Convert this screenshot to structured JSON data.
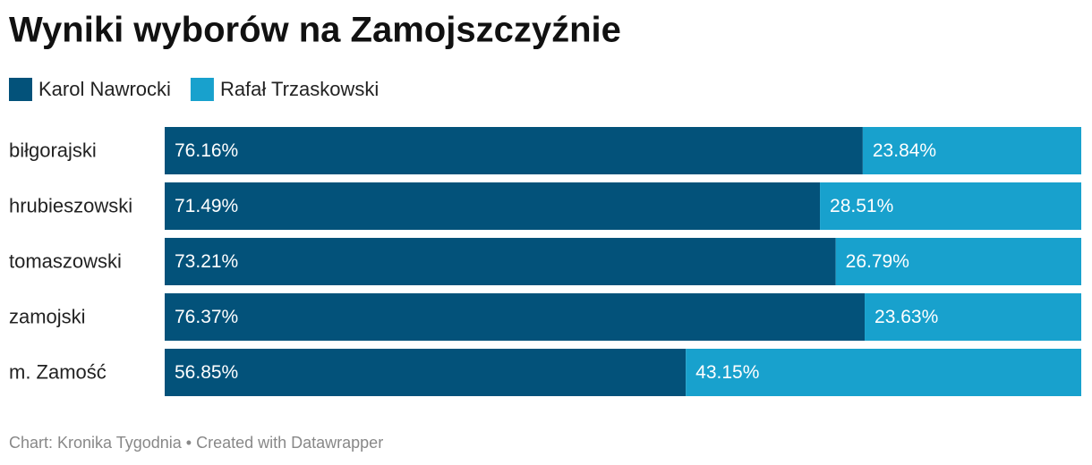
{
  "chart_data": {
    "type": "stacked-bar",
    "title": "Wyniki wyborów na Zamojszczyźnie",
    "categories": [
      "biłgorajski",
      "hrubieszowski",
      "tomaszowski",
      "zamojski",
      "m. Zamość"
    ],
    "series": [
      {
        "name": "Karol Nawrocki",
        "color": "#03527a",
        "values": [
          76.16,
          71.49,
          73.21,
          76.37,
          56.85
        ],
        "value_labels": [
          "76.16%",
          "71.49%",
          "73.21%",
          "76.37%",
          "56.85%"
        ]
      },
      {
        "name": "Rafał Trzaskowski",
        "color": "#18a1cd",
        "values": [
          23.84,
          28.51,
          26.79,
          23.63,
          43.15
        ],
        "value_labels": [
          "23.84%",
          "28.51%",
          "26.79%",
          "23.63%",
          "43.15%"
        ]
      }
    ],
    "footer": "Chart: Kronika Tygodnia • Created with Datawrapper"
  }
}
